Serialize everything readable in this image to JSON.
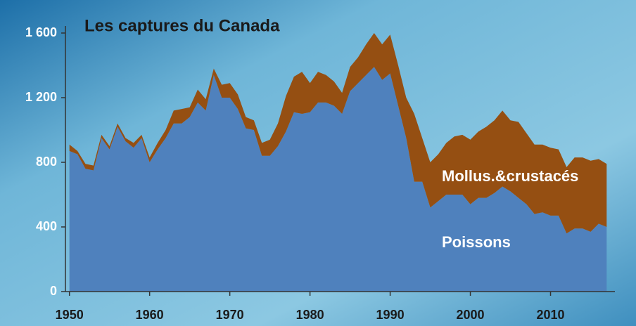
{
  "chart_data": {
    "type": "stacked_area",
    "title": "Les captures du Canada",
    "x": [
      1950,
      1951,
      1952,
      1953,
      1954,
      1955,
      1956,
      1957,
      1958,
      1959,
      1960,
      1961,
      1962,
      1963,
      1964,
      1965,
      1966,
      1967,
      1968,
      1969,
      1970,
      1971,
      1972,
      1973,
      1974,
      1975,
      1976,
      1977,
      1978,
      1979,
      1980,
      1981,
      1982,
      1983,
      1984,
      1985,
      1986,
      1987,
      1988,
      1989,
      1990,
      1991,
      1992,
      1993,
      1994,
      1995,
      1996,
      1997,
      1998,
      1999,
      2000,
      2001,
      2002,
      2003,
      2004,
      2005,
      2006,
      2007,
      2008,
      2009,
      2010,
      2011,
      2012,
      2013,
      2014,
      2015,
      2016,
      2017
    ],
    "series": [
      {
        "name": "Poissons",
        "color": "#4f81bd",
        "values": [
          870,
          850,
          760,
          750,
          950,
          880,
          1020,
          930,
          890,
          950,
          800,
          880,
          950,
          1040,
          1040,
          1080,
          1170,
          1120,
          1340,
          1200,
          1200,
          1130,
          1010,
          1000,
          840,
          840,
          900,
          990,
          1110,
          1100,
          1110,
          1170,
          1170,
          1150,
          1100,
          1240,
          1290,
          1340,
          1390,
          1310,
          1350,
          1150,
          950,
          680,
          680,
          520,
          560,
          600,
          600,
          600,
          540,
          580,
          580,
          610,
          650,
          620,
          580,
          540,
          480,
          490,
          470,
          470,
          360,
          390,
          390,
          370,
          420,
          400
        ]
      },
      {
        "name": "Mollus.&crustacés",
        "color": "#954f12",
        "values": [
          40,
          20,
          30,
          30,
          20,
          20,
          20,
          20,
          30,
          20,
          30,
          40,
          50,
          80,
          90,
          60,
          80,
          70,
          40,
          80,
          90,
          90,
          70,
          60,
          80,
          100,
          140,
          220,
          220,
          260,
          180,
          190,
          170,
          150,
          130,
          150,
          160,
          190,
          210,
          220,
          240,
          250,
          250,
          420,
          270,
          280,
          290,
          320,
          360,
          370,
          400,
          410,
          440,
          450,
          470,
          440,
          470,
          440,
          430,
          420,
          420,
          410,
          410,
          440,
          440,
          440,
          400,
          390
        ]
      }
    ],
    "xlim": [
      1949.5,
      2017.5
    ],
    "xticks": [
      1950,
      1960,
      1970,
      1980,
      1990,
      2000,
      2010
    ],
    "ylim": [
      0,
      1600
    ],
    "yticks": [
      0,
      400,
      800,
      {
        "value": 1200,
        "label": "1 200"
      },
      {
        "value": 1600,
        "label": "1 600"
      }
    ]
  }
}
